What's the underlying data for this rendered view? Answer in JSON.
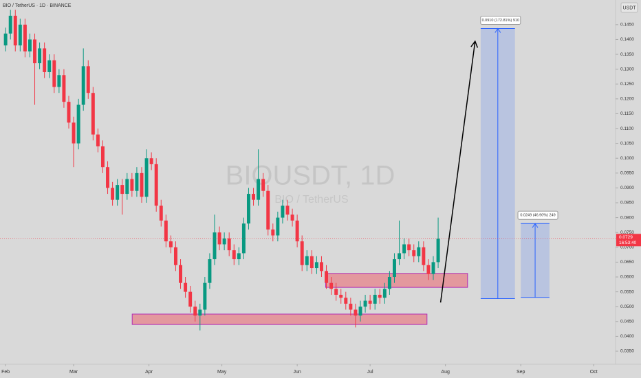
{
  "chart_data": {
    "type": "candlestick",
    "title": "BIO / TetherUS · 1D · BINANCE",
    "watermark": "BIOUSDT, 1D",
    "watermark_subtitle": "BIO / TetherUS",
    "currency": "USDT",
    "up_color": "#089981",
    "down_color": "#f23645",
    "x": [
      0,
      2,
      4,
      6,
      8,
      10,
      12,
      14,
      16,
      18,
      20,
      22,
      24,
      26,
      28,
      30,
      32,
      34,
      36,
      38,
      40,
      42,
      44,
      46,
      48,
      50,
      52,
      54,
      56,
      58,
      60,
      62,
      64,
      66,
      68,
      70,
      72,
      74,
      76,
      78,
      80,
      82,
      84,
      86,
      88,
      90,
      92,
      94,
      96,
      98,
      100,
      102,
      104,
      106,
      108,
      110,
      112,
      114,
      116,
      118,
      120,
      122,
      124,
      126,
      128,
      130,
      132,
      134,
      136,
      138,
      140,
      142,
      144,
      146,
      148,
      150,
      152,
      154,
      156,
      158,
      160,
      162,
      164,
      166,
      168,
      170,
      172,
      174,
      176,
      178
    ],
    "open": [
      0.138,
      0.142,
      0.148,
      0.138,
      0.145,
      0.136,
      0.14,
      0.132,
      0.137,
      0.129,
      0.133,
      0.124,
      0.128,
      0.119,
      0.112,
      0.105,
      0.118,
      0.131,
      0.122,
      0.108,
      0.104,
      0.097,
      0.09,
      0.086,
      0.091,
      0.088,
      0.093,
      0.089,
      0.095,
      0.087,
      0.1,
      0.098,
      0.084,
      0.079,
      0.072,
      0.07,
      0.064,
      0.058,
      0.055,
      0.05,
      0.047,
      0.049,
      0.058,
      0.066,
      0.075,
      0.071,
      0.073,
      0.069,
      0.066,
      0.068,
      0.078,
      0.088,
      0.086,
      0.093,
      0.089,
      0.076,
      0.074,
      0.08,
      0.084,
      0.081,
      0.079,
      0.072,
      0.064,
      0.067,
      0.063,
      0.065,
      0.062,
      0.058,
      0.056,
      0.054,
      0.053,
      0.051,
      0.049,
      0.047,
      0.05,
      0.052,
      0.051,
      0.054,
      0.053,
      0.056,
      0.06,
      0.066,
      0.068,
      0.071,
      0.069,
      0.067,
      0.07,
      0.064,
      0.061,
      0.065
    ],
    "high": [
      0.144,
      0.15,
      0.15,
      0.147,
      0.147,
      0.142,
      0.142,
      0.139,
      0.139,
      0.135,
      0.135,
      0.13,
      0.13,
      0.121,
      0.114,
      0.12,
      0.137,
      0.133,
      0.124,
      0.11,
      0.106,
      0.099,
      0.092,
      0.093,
      0.093,
      0.095,
      0.095,
      0.097,
      0.097,
      0.103,
      0.102,
      0.1,
      0.086,
      0.081,
      0.074,
      0.072,
      0.066,
      0.06,
      0.057,
      0.052,
      0.051,
      0.06,
      0.068,
      0.081,
      0.077,
      0.075,
      0.075,
      0.071,
      0.07,
      0.08,
      0.09,
      0.09,
      0.103,
      0.095,
      0.091,
      0.078,
      0.082,
      0.086,
      0.086,
      0.083,
      0.081,
      0.074,
      0.069,
      0.069,
      0.067,
      0.067,
      0.064,
      0.06,
      0.058,
      0.056,
      0.055,
      0.053,
      0.051,
      0.052,
      0.054,
      0.054,
      0.056,
      0.056,
      0.058,
      0.062,
      0.068,
      0.079,
      0.073,
      0.073,
      0.071,
      0.072,
      0.072,
      0.066,
      0.067,
      0.08
    ],
    "low": [
      0.136,
      0.14,
      0.136,
      0.136,
      0.134,
      0.134,
      0.118,
      0.13,
      0.127,
      0.127,
      0.122,
      0.122,
      0.117,
      0.11,
      0.097,
      0.103,
      0.116,
      0.12,
      0.106,
      0.102,
      0.095,
      0.088,
      0.084,
      0.084,
      0.081,
      0.086,
      0.087,
      0.087,
      0.085,
      0.085,
      0.096,
      0.082,
      0.077,
      0.07,
      0.068,
      0.062,
      0.056,
      0.053,
      0.048,
      0.045,
      0.042,
      0.047,
      0.056,
      0.064,
      0.069,
      0.069,
      0.067,
      0.064,
      0.064,
      0.066,
      0.076,
      0.084,
      0.084,
      0.087,
      0.074,
      0.072,
      0.072,
      0.078,
      0.079,
      0.077,
      0.07,
      0.062,
      0.062,
      0.061,
      0.061,
      0.06,
      0.056,
      0.054,
      0.052,
      0.051,
      0.049,
      0.047,
      0.043,
      0.045,
      0.048,
      0.049,
      0.049,
      0.051,
      0.051,
      0.054,
      0.058,
      0.064,
      0.066,
      0.067,
      0.065,
      0.065,
      0.062,
      0.059,
      0.059,
      0.063
    ],
    "close": [
      0.142,
      0.148,
      0.138,
      0.145,
      0.136,
      0.14,
      0.132,
      0.137,
      0.129,
      0.133,
      0.124,
      0.128,
      0.119,
      0.112,
      0.105,
      0.118,
      0.131,
      0.122,
      0.108,
      0.104,
      0.097,
      0.09,
      0.086,
      0.091,
      0.088,
      0.093,
      0.089,
      0.095,
      0.087,
      0.1,
      0.098,
      0.084,
      0.079,
      0.072,
      0.07,
      0.064,
      0.058,
      0.055,
      0.05,
      0.047,
      0.049,
      0.058,
      0.066,
      0.075,
      0.071,
      0.073,
      0.069,
      0.066,
      0.068,
      0.078,
      0.088,
      0.086,
      0.093,
      0.089,
      0.076,
      0.074,
      0.08,
      0.084,
      0.081,
      0.079,
      0.072,
      0.064,
      0.067,
      0.063,
      0.065,
      0.062,
      0.058,
      0.056,
      0.054,
      0.053,
      0.051,
      0.049,
      0.047,
      0.05,
      0.052,
      0.051,
      0.054,
      0.053,
      0.056,
      0.06,
      0.066,
      0.068,
      0.071,
      0.069,
      0.067,
      0.07,
      0.064,
      0.061,
      0.065,
      0.0729
    ],
    "xlim": [
      -2.3,
      251
    ],
    "xticks": [
      {
        "value": 0,
        "label": "Feb"
      },
      {
        "value": 28,
        "label": "Mar"
      },
      {
        "value": 59,
        "label": "Apr"
      },
      {
        "value": 89,
        "label": "May"
      },
      {
        "value": 120,
        "label": "Jun"
      },
      {
        "value": 150,
        "label": "Jul"
      },
      {
        "value": 181,
        "label": "Aug"
      },
      {
        "value": 212,
        "label": "Sep"
      },
      {
        "value": 242,
        "label": "Oct"
      }
    ],
    "ylim": [
      0.0306,
      0.1533
    ],
    "yticks": [
      {
        "value": 0.035,
        "label": "0.0350"
      },
      {
        "value": 0.04,
        "label": "0.0400"
      },
      {
        "value": 0.045,
        "label": "0.0450"
      },
      {
        "value": 0.05,
        "label": "0.0500"
      },
      {
        "value": 0.055,
        "label": "0.0550"
      },
      {
        "value": 0.06,
        "label": "0.0600"
      },
      {
        "value": 0.065,
        "label": "0.0650"
      },
      {
        "value": 0.07,
        "label": "0.0700"
      },
      {
        "value": 0.075,
        "label": "0.0750"
      },
      {
        "value": 0.08,
        "label": "0.0800"
      },
      {
        "value": 0.085,
        "label": "0.0850"
      },
      {
        "value": 0.09,
        "label": "0.0900"
      },
      {
        "value": 0.095,
        "label": "0.0950"
      },
      {
        "value": 0.1,
        "label": "0.1000"
      },
      {
        "value": 0.105,
        "label": "0.1050"
      },
      {
        "value": 0.11,
        "label": "0.1100"
      },
      {
        "value": 0.115,
        "label": "0.1150"
      },
      {
        "value": 0.12,
        "label": "0.1200"
      },
      {
        "value": 0.125,
        "label": "0.1250"
      },
      {
        "value": 0.13,
        "label": "0.1300"
      },
      {
        "value": 0.135,
        "label": "0.1350"
      },
      {
        "value": 0.14,
        "label": "0.1400"
      },
      {
        "value": 0.145,
        "label": "0.1450"
      }
    ],
    "last_price": 0.0729,
    "countdown": "16:53:40",
    "zones": [
      {
        "x": [
          52.1,
          173.4
        ],
        "y": [
          0.044,
          0.0475
        ]
      },
      {
        "x": [
          131.7,
          190.1
        ],
        "y": [
          0.0565,
          0.0612
        ]
      }
    ],
    "measures": [
      {
        "x": [
          195.5,
          209.6
        ],
        "y": [
          0.0527,
          0.1437
        ],
        "label": "0.0910 (172.81%) 910"
      },
      {
        "x": [
          212,
          223.8
        ],
        "y": [
          0.0531,
          0.078
        ],
        "label": "0.0249 (46.90%) 249"
      }
    ],
    "arrow": {
      "x": [
        179,
        193.2
      ],
      "y": [
        0.0514,
        0.1394
      ]
    }
  }
}
